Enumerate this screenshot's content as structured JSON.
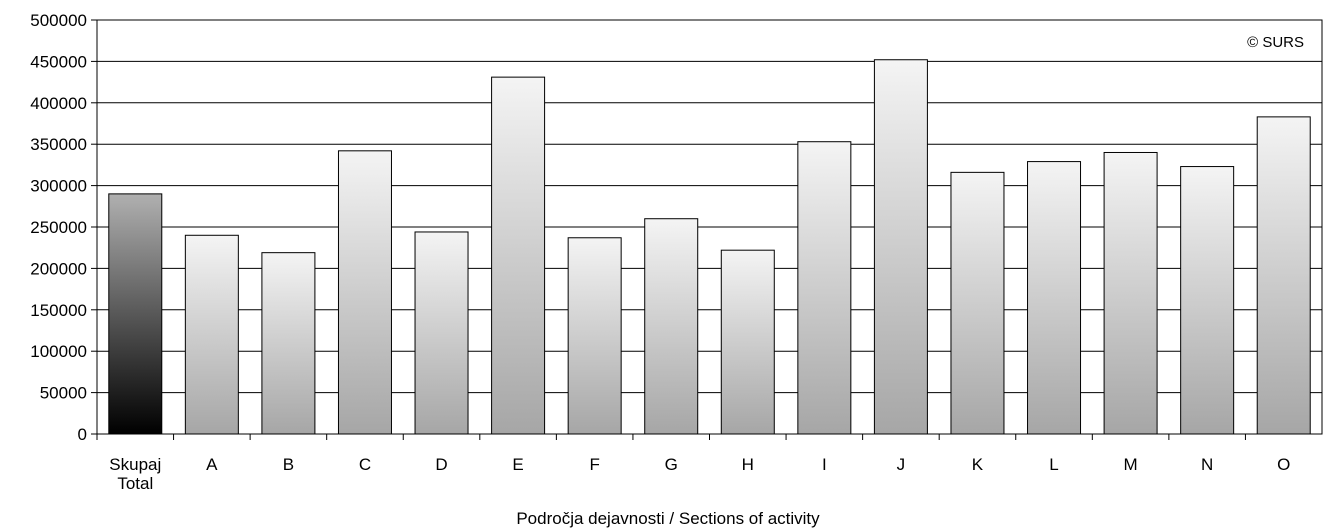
{
  "chart_data": {
    "type": "bar",
    "categories": [
      [
        "Skupaj",
        "Total"
      ],
      [
        "A"
      ],
      [
        "B"
      ],
      [
        "C"
      ],
      [
        "D"
      ],
      [
        "E"
      ],
      [
        "F"
      ],
      [
        "G"
      ],
      [
        "H"
      ],
      [
        "I"
      ],
      [
        "J"
      ],
      [
        "K"
      ],
      [
        "L"
      ],
      [
        "M"
      ],
      [
        "N"
      ],
      [
        "O"
      ]
    ],
    "values": [
      290000,
      240000,
      219000,
      342000,
      244000,
      431000,
      237000,
      260000,
      222000,
      353000,
      452000,
      316000,
      329000,
      340000,
      323000,
      383000
    ],
    "xlabel": "Področja dejavnosti / Sections of activity",
    "ylabel": "",
    "ylim": [
      0,
      500000
    ],
    "yticks": [
      "0",
      "50000",
      "100000",
      "150000",
      "200000",
      "250000",
      "300000",
      "350000",
      "400000",
      "450000",
      "500000"
    ],
    "grid": true,
    "legend": null,
    "annotation": "© SURS",
    "colors": {
      "total_bar_top": "#b0b0b0",
      "total_bar_bottom": "#000000",
      "bar_top": "#f4f4f4",
      "bar_bottom": "#a6a6a6",
      "grid": "#000000",
      "outline": "#000000"
    }
  }
}
